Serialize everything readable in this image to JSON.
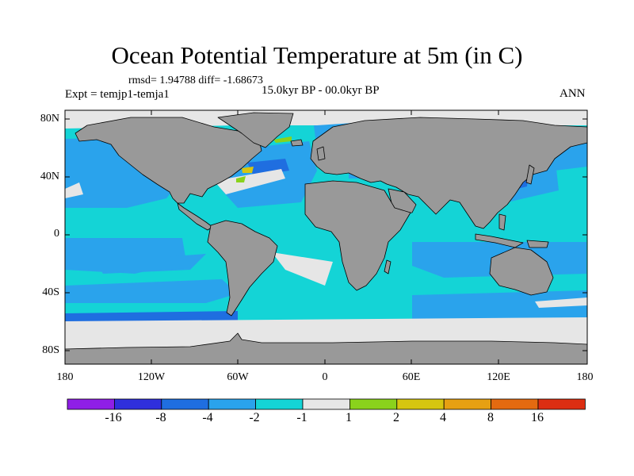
{
  "title": "Ocean Potential Temperature at 5m (in C)",
  "stats_text": "rmsd= 1.94788 diff= -1.68673",
  "expt_text": "Expt = temjp1-temja1",
  "period_text": "15.0kyr BP - 00.0kyr BP",
  "season": "ANN",
  "lat_ticks": [
    "80N",
    "40N",
    "0",
    "40S",
    "80S"
  ],
  "lon_ticks": [
    "180",
    "120W",
    "60W",
    "0",
    "60E",
    "120E",
    "180"
  ],
  "colorbar": {
    "colors": [
      "#8f1fe6",
      "#2f2fdc",
      "#1f6ee0",
      "#2aa3ec",
      "#14d4d6",
      "#e6e6e6",
      "#8ad21c",
      "#d6c610",
      "#e6a012",
      "#e46a10",
      "#dc2e12"
    ],
    "labels": [
      "-16",
      "-8",
      "-4",
      "-2",
      "-1",
      "1",
      "2",
      "4",
      "8",
      "16"
    ]
  },
  "map_colors": {
    "land": "#999999",
    "ice": "#e6e6e6",
    "ocean_base": "#14d4d6"
  }
}
